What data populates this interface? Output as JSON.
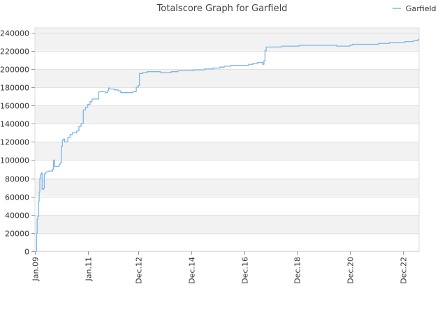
{
  "chart_data": {
    "type": "line",
    "title": "Totalscore Graph for Garfield",
    "xlabel": "",
    "ylabel": "",
    "ylim": [
      0,
      245000
    ],
    "xlim": [
      "2009-01-01",
      "2023-07-15"
    ],
    "grid": true,
    "legend_position": "top-right",
    "y_ticks": [
      0,
      20000,
      40000,
      60000,
      80000,
      100000,
      120000,
      140000,
      160000,
      180000,
      200000,
      220000,
      240000
    ],
    "x_ticks": [
      {
        "label": "Jan.09",
        "date": "2009-01-01"
      },
      {
        "label": "Jan.11",
        "date": "2011-01-01"
      },
      {
        "label": "Dec.12",
        "date": "2012-12-01"
      },
      {
        "label": "Dec.14",
        "date": "2014-12-01"
      },
      {
        "label": "Dec.16",
        "date": "2016-12-01"
      },
      {
        "label": "Dec.18",
        "date": "2018-12-01"
      },
      {
        "label": "Dec.20",
        "date": "2020-12-01"
      },
      {
        "label": "Dec.22",
        "date": "2022-12-01"
      }
    ],
    "series": [
      {
        "name": "Garfield",
        "color": "#7cb5ec",
        "points": [
          [
            "2009-01-20",
            0
          ],
          [
            "2009-01-25",
            20000
          ],
          [
            "2009-02-01",
            35000
          ],
          [
            "2009-02-10",
            38000
          ],
          [
            "2009-02-20",
            55000
          ],
          [
            "2009-03-01",
            65000
          ],
          [
            "2009-03-10",
            80000
          ],
          [
            "2009-03-20",
            84000
          ],
          [
            "2009-04-01",
            86000
          ],
          [
            "2009-04-10",
            68000
          ],
          [
            "2009-05-01",
            69000
          ],
          [
            "2009-05-10",
            85000
          ],
          [
            "2009-06-01",
            87000
          ],
          [
            "2009-07-01",
            88000
          ],
          [
            "2009-08-01",
            88000
          ],
          [
            "2009-09-01",
            90000
          ],
          [
            "2009-09-15",
            100000
          ],
          [
            "2009-10-01",
            93000
          ],
          [
            "2009-11-01",
            93000
          ],
          [
            "2009-12-01",
            95000
          ],
          [
            "2009-12-15",
            97000
          ],
          [
            "2010-01-01",
            115000
          ],
          [
            "2010-01-15",
            122000
          ],
          [
            "2010-02-01",
            123000
          ],
          [
            "2010-02-15",
            120000
          ],
          [
            "2010-03-20",
            120000
          ],
          [
            "2010-04-01",
            125000
          ],
          [
            "2010-05-01",
            128000
          ],
          [
            "2010-06-01",
            130000
          ],
          [
            "2010-08-01",
            132000
          ],
          [
            "2010-09-01",
            137000
          ],
          [
            "2010-10-01",
            140000
          ],
          [
            "2010-11-01",
            155000
          ],
          [
            "2010-12-01",
            158000
          ],
          [
            "2011-01-01",
            161000
          ],
          [
            "2011-02-01",
            164000
          ],
          [
            "2011-03-01",
            167000
          ],
          [
            "2011-04-01",
            167000
          ],
          [
            "2011-05-15",
            167000
          ],
          [
            "2011-06-01",
            175000
          ],
          [
            "2011-07-01",
            175000
          ],
          [
            "2011-09-01",
            174000
          ],
          [
            "2011-10-01",
            176000
          ],
          [
            "2011-10-15",
            179000
          ],
          [
            "2011-11-01",
            178000
          ],
          [
            "2012-01-01",
            177000
          ],
          [
            "2012-03-01",
            176000
          ],
          [
            "2012-04-01",
            174000
          ],
          [
            "2012-05-01",
            174000
          ],
          [
            "2012-08-01",
            174000
          ],
          [
            "2012-09-15",
            175000
          ],
          [
            "2012-11-01",
            180000
          ],
          [
            "2012-12-01",
            182000
          ],
          [
            "2012-12-15",
            195000
          ],
          [
            "2013-01-01",
            195000
          ],
          [
            "2013-02-01",
            196000
          ],
          [
            "2013-04-01",
            197000
          ],
          [
            "2013-08-01",
            197000
          ],
          [
            "2013-10-01",
            196000
          ],
          [
            "2014-01-01",
            196000
          ],
          [
            "2014-03-01",
            197000
          ],
          [
            "2014-06-01",
            198000
          ],
          [
            "2014-12-01",
            198000
          ],
          [
            "2015-01-01",
            199000
          ],
          [
            "2015-06-01",
            200000
          ],
          [
            "2015-10-01",
            201000
          ],
          [
            "2016-01-01",
            202000
          ],
          [
            "2016-03-01",
            203000
          ],
          [
            "2016-06-01",
            204000
          ],
          [
            "2017-01-01",
            204000
          ],
          [
            "2017-02-01",
            205000
          ],
          [
            "2017-04-01",
            206000
          ],
          [
            "2017-06-01",
            207000
          ],
          [
            "2017-08-01",
            207000
          ],
          [
            "2017-08-15",
            205000
          ],
          [
            "2017-09-01",
            209000
          ],
          [
            "2017-09-15",
            220000
          ],
          [
            "2017-10-01",
            224000
          ],
          [
            "2018-01-01",
            224000
          ],
          [
            "2018-04-01",
            224000
          ],
          [
            "2018-05-01",
            225000
          ],
          [
            "2018-08-01",
            225000
          ],
          [
            "2019-01-01",
            226000
          ],
          [
            "2019-07-01",
            226000
          ],
          [
            "2020-01-01",
            226000
          ],
          [
            "2020-06-01",
            225000
          ],
          [
            "2020-10-01",
            225000
          ],
          [
            "2020-12-01",
            226000
          ],
          [
            "2021-01-01",
            227000
          ],
          [
            "2021-06-01",
            227000
          ],
          [
            "2022-01-01",
            228000
          ],
          [
            "2022-06-01",
            229000
          ],
          [
            "2023-01-01",
            230000
          ],
          [
            "2023-05-01",
            231000
          ],
          [
            "2023-07-01",
            232000
          ],
          [
            "2023-07-10",
            233000
          ]
        ]
      }
    ]
  }
}
